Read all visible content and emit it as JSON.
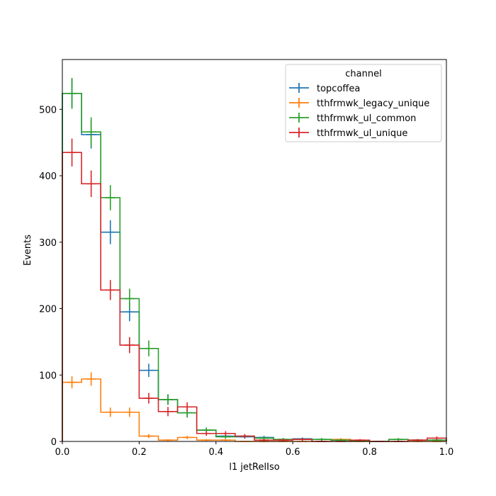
{
  "chart_data": {
    "type": "histogram",
    "xlabel": "l1 jetRelIso",
    "ylabel": "Events",
    "xlim": [
      0.0,
      1.0
    ],
    "ylim": [
      0,
      575
    ],
    "x_ticks": [
      "0.0",
      "0.2",
      "0.4",
      "0.6",
      "0.8",
      "1.0"
    ],
    "y_ticks": [
      "0",
      "100",
      "200",
      "300",
      "400",
      "500"
    ],
    "grid": false,
    "legend_title": "channel",
    "legend_position": "top-right",
    "bin_edges": [
      0.0,
      0.05,
      0.1,
      0.15,
      0.2,
      0.25,
      0.3,
      0.35,
      0.4,
      0.45,
      0.5,
      0.55,
      0.6,
      0.65,
      0.7,
      0.75,
      0.8,
      0.85,
      0.9,
      0.95,
      1.0
    ],
    "series": [
      {
        "name": "topcoffea",
        "color": "#1f77b4",
        "values": [
          524,
          462,
          315,
          195,
          107,
          63,
          43,
          17,
          8,
          7,
          6,
          3,
          4,
          3,
          2,
          1,
          0,
          3,
          2,
          2
        ],
        "errors": [
          23,
          21,
          18,
          14,
          10,
          8,
          7,
          4,
          3,
          3,
          2.5,
          2,
          2,
          2,
          1.5,
          1,
          0,
          2,
          1.5,
          1.5
        ]
      },
      {
        "name": "tthfrmwk_legacy_unique",
        "color": "#ff7f0e",
        "values": [
          89,
          94,
          44,
          44,
          8,
          2,
          6,
          2,
          2,
          0,
          0,
          0,
          0,
          0,
          3,
          0,
          0,
          0,
          0,
          0
        ],
        "errors": [
          9,
          10,
          7,
          7,
          3,
          1.5,
          2.5,
          1.5,
          1.5,
          0,
          0,
          0,
          0,
          0,
          2,
          0,
          0,
          0,
          0,
          0
        ]
      },
      {
        "name": "tthfrmwk_ul_common",
        "color": "#2ca02c",
        "values": [
          524,
          466,
          367,
          215,
          140,
          63,
          43,
          17,
          7,
          8,
          5,
          3,
          3,
          3,
          2,
          1,
          0,
          3,
          2,
          2
        ],
        "errors": [
          23,
          22,
          19,
          15,
          12,
          8,
          7,
          4,
          3,
          3,
          2.5,
          2,
          2,
          2,
          1.5,
          1,
          0,
          2,
          1.5,
          1.5
        ]
      },
      {
        "name": "tthfrmwk_ul_unique",
        "color": "#d62728",
        "values": [
          435,
          388,
          228,
          145,
          65,
          45,
          52,
          12,
          12,
          8,
          2,
          2,
          3,
          0,
          0,
          2,
          0,
          0,
          2,
          5
        ],
        "errors": [
          21,
          20,
          15,
          12,
          8,
          7,
          7,
          3.5,
          3.5,
          3,
          1.5,
          1.5,
          2,
          0,
          0,
          1.5,
          0,
          0,
          1.5,
          2.5
        ]
      }
    ]
  }
}
